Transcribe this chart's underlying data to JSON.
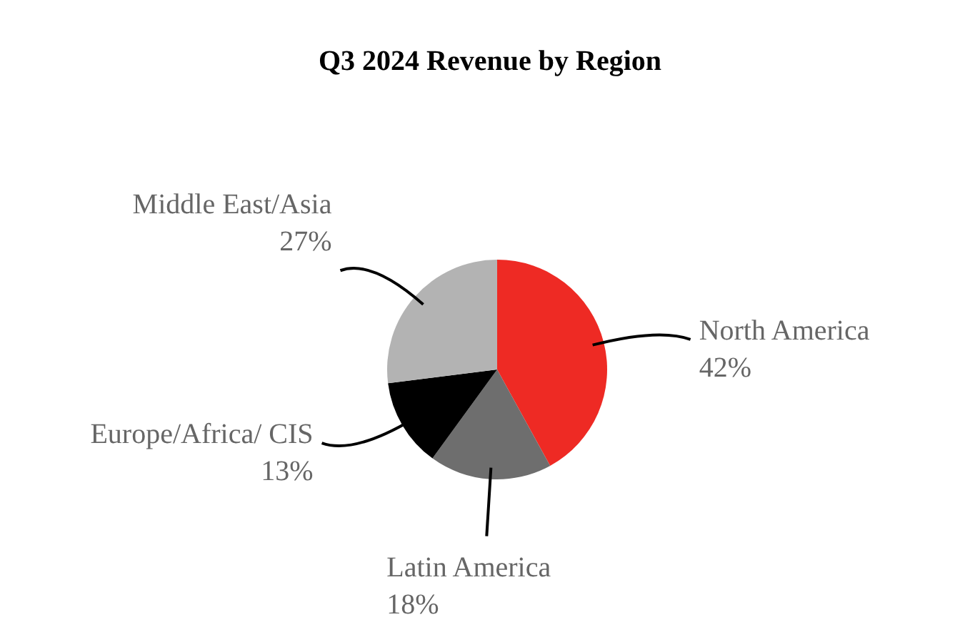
{
  "chart_data": {
    "type": "pie",
    "title": "Q3 2024 Revenue by Region",
    "categories": [
      "North America",
      "Latin America",
      "Europe/Africa/ CIS",
      "Middle East/Asia"
    ],
    "values": [
      42,
      18,
      13,
      27
    ],
    "value_labels": [
      "42%",
      "18%",
      "13%",
      "27%"
    ],
    "colors": [
      "#ee2a24",
      "#6e6e6e",
      "#000000",
      "#b3b3b3"
    ],
    "legend": false
  }
}
